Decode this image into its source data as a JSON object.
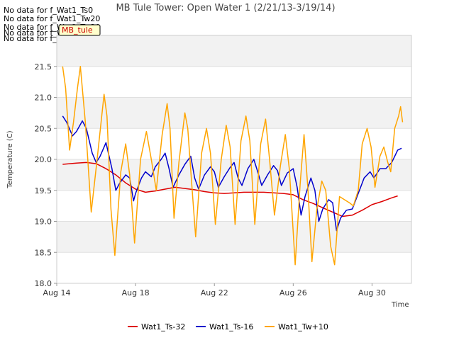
{
  "no_data_messages": [
    "No data for f_Wat1_Ts0",
    "No data for f_Wat1_Tw20",
    "No data for f_Wat1_Tw30",
    "No data for f_Wat1_Tw40",
    "No data for f_Wat1_Tw50"
  ],
  "badge_label": "MB_tule",
  "chart_data": {
    "type": "line",
    "title": "MB Tule Tower: Open Water 1 (2/21/13-3/19/14)",
    "xlabel": "Time",
    "ylabel": "Temperature (C)",
    "ylim": [
      18.0,
      22.0
    ],
    "xlim": [
      14,
      32
    ],
    "yticks": [
      18.0,
      18.5,
      19.0,
      19.5,
      20.0,
      20.5,
      21.0,
      21.5
    ],
    "ytick_labels": [
      "18.0",
      "18.5",
      "19.0",
      "19.5",
      "20.0",
      "20.5",
      "21.0",
      "21.5"
    ],
    "xticks": [
      14,
      18,
      22,
      26,
      30
    ],
    "xtick_labels": [
      "Aug 14",
      "Aug 18",
      "Aug 22",
      "Aug 26",
      "Aug 30"
    ],
    "grid": true,
    "legend_position": "bottom",
    "series": [
      {
        "name": "Wat1_Ts-32",
        "color": "#dd0000",
        "points": [
          [
            14.3,
            19.92
          ],
          [
            15.0,
            19.94
          ],
          [
            15.5,
            19.95
          ],
          [
            16.0,
            19.93
          ],
          [
            16.5,
            19.85
          ],
          [
            17.0,
            19.75
          ],
          [
            17.5,
            19.62
          ],
          [
            18.0,
            19.52
          ],
          [
            18.5,
            19.47
          ],
          [
            19.0,
            19.49
          ],
          [
            19.5,
            19.52
          ],
          [
            20.0,
            19.55
          ],
          [
            20.5,
            19.53
          ],
          [
            21.0,
            19.51
          ],
          [
            21.5,
            19.48
          ],
          [
            22.0,
            19.46
          ],
          [
            22.5,
            19.45
          ],
          [
            23.0,
            19.46
          ],
          [
            23.5,
            19.47
          ],
          [
            24.0,
            19.47
          ],
          [
            24.5,
            19.47
          ],
          [
            25.0,
            19.46
          ],
          [
            25.5,
            19.45
          ],
          [
            26.0,
            19.43
          ],
          [
            26.5,
            19.35
          ],
          [
            27.0,
            19.29
          ],
          [
            27.5,
            19.22
          ],
          [
            28.0,
            19.15
          ],
          [
            28.5,
            19.08
          ],
          [
            29.0,
            19.1
          ],
          [
            29.5,
            19.18
          ],
          [
            30.0,
            19.27
          ],
          [
            30.5,
            19.32
          ],
          [
            31.0,
            19.38
          ],
          [
            31.3,
            19.41
          ]
        ]
      },
      {
        "name": "Wat1_Ts-16",
        "color": "#0000cc",
        "points": [
          [
            14.3,
            20.7
          ],
          [
            14.5,
            20.6
          ],
          [
            14.8,
            20.38
          ],
          [
            15.0,
            20.45
          ],
          [
            15.3,
            20.62
          ],
          [
            15.5,
            20.5
          ],
          [
            15.8,
            20.1
          ],
          [
            16.0,
            19.95
          ],
          [
            16.2,
            20.05
          ],
          [
            16.5,
            20.27
          ],
          [
            16.8,
            19.85
          ],
          [
            17.0,
            19.5
          ],
          [
            17.2,
            19.62
          ],
          [
            17.5,
            19.75
          ],
          [
            17.7,
            19.7
          ],
          [
            17.9,
            19.33
          ],
          [
            18.0,
            19.45
          ],
          [
            18.3,
            19.7
          ],
          [
            18.5,
            19.8
          ],
          [
            18.8,
            19.72
          ],
          [
            19.0,
            19.88
          ],
          [
            19.3,
            20.0
          ],
          [
            19.5,
            20.1
          ],
          [
            19.7,
            19.85
          ],
          [
            19.9,
            19.55
          ],
          [
            20.2,
            19.75
          ],
          [
            20.5,
            19.92
          ],
          [
            20.8,
            20.05
          ],
          [
            21.0,
            19.7
          ],
          [
            21.2,
            19.52
          ],
          [
            21.5,
            19.75
          ],
          [
            21.8,
            19.88
          ],
          [
            22.0,
            19.8
          ],
          [
            22.2,
            19.55
          ],
          [
            22.5,
            19.72
          ],
          [
            22.8,
            19.87
          ],
          [
            23.0,
            19.95
          ],
          [
            23.2,
            19.7
          ],
          [
            23.4,
            19.58
          ],
          [
            23.7,
            19.85
          ],
          [
            24.0,
            20.0
          ],
          [
            24.2,
            19.8
          ],
          [
            24.4,
            19.58
          ],
          [
            24.7,
            19.75
          ],
          [
            25.0,
            19.9
          ],
          [
            25.2,
            19.82
          ],
          [
            25.4,
            19.58
          ],
          [
            25.7,
            19.78
          ],
          [
            26.0,
            19.85
          ],
          [
            26.2,
            19.55
          ],
          [
            26.4,
            19.1
          ],
          [
            26.6,
            19.4
          ],
          [
            26.9,
            19.7
          ],
          [
            27.1,
            19.5
          ],
          [
            27.3,
            19.0
          ],
          [
            27.5,
            19.2
          ],
          [
            27.8,
            19.35
          ],
          [
            28.0,
            19.3
          ],
          [
            28.2,
            18.85
          ],
          [
            28.4,
            19.05
          ],
          [
            28.7,
            19.18
          ],
          [
            29.0,
            19.2
          ],
          [
            29.3,
            19.45
          ],
          [
            29.6,
            19.7
          ],
          [
            29.9,
            19.8
          ],
          [
            30.1,
            19.7
          ],
          [
            30.4,
            19.85
          ],
          [
            30.7,
            19.85
          ],
          [
            31.0,
            19.95
          ],
          [
            31.3,
            20.15
          ],
          [
            31.5,
            20.18
          ]
        ]
      },
      {
        "name": "Wat1_Tw+10",
        "color": "#ffa500",
        "points": [
          [
            14.3,
            21.5
          ],
          [
            14.45,
            21.15
          ],
          [
            14.65,
            20.15
          ],
          [
            14.85,
            20.6
          ],
          [
            15.05,
            21.15
          ],
          [
            15.2,
            21.5
          ],
          [
            15.45,
            20.6
          ],
          [
            15.75,
            19.15
          ],
          [
            16.05,
            20.0
          ],
          [
            16.4,
            21.05
          ],
          [
            16.55,
            20.7
          ],
          [
            16.75,
            19.2
          ],
          [
            16.95,
            18.45
          ],
          [
            17.25,
            19.8
          ],
          [
            17.5,
            20.25
          ],
          [
            17.7,
            19.75
          ],
          [
            17.95,
            18.65
          ],
          [
            18.25,
            20.0
          ],
          [
            18.55,
            20.45
          ],
          [
            18.8,
            20.0
          ],
          [
            19.05,
            19.5
          ],
          [
            19.35,
            20.4
          ],
          [
            19.6,
            20.9
          ],
          [
            19.75,
            20.5
          ],
          [
            19.95,
            19.05
          ],
          [
            20.2,
            19.95
          ],
          [
            20.5,
            20.75
          ],
          [
            20.65,
            20.5
          ],
          [
            20.85,
            19.6
          ],
          [
            21.05,
            18.75
          ],
          [
            21.35,
            20.1
          ],
          [
            21.6,
            20.5
          ],
          [
            21.8,
            20.1
          ],
          [
            22.05,
            18.95
          ],
          [
            22.35,
            20.0
          ],
          [
            22.6,
            20.55
          ],
          [
            22.8,
            20.2
          ],
          [
            23.05,
            18.95
          ],
          [
            23.35,
            20.3
          ],
          [
            23.6,
            20.7
          ],
          [
            23.8,
            20.3
          ],
          [
            24.05,
            18.95
          ],
          [
            24.35,
            20.25
          ],
          [
            24.6,
            20.65
          ],
          [
            24.8,
            20.0
          ],
          [
            25.05,
            19.1
          ],
          [
            25.35,
            19.9
          ],
          [
            25.6,
            20.4
          ],
          [
            25.8,
            19.85
          ],
          [
            25.95,
            19.1
          ],
          [
            26.1,
            18.3
          ],
          [
            26.35,
            19.6
          ],
          [
            26.55,
            20.4
          ],
          [
            26.75,
            19.5
          ],
          [
            26.95,
            18.35
          ],
          [
            27.2,
            19.2
          ],
          [
            27.45,
            19.65
          ],
          [
            27.65,
            19.5
          ],
          [
            27.9,
            18.6
          ],
          [
            28.1,
            18.3
          ],
          [
            28.35,
            19.4
          ],
          [
            28.6,
            19.35
          ],
          [
            28.85,
            19.3
          ],
          [
            29.05,
            19.25
          ],
          [
            29.3,
            19.5
          ],
          [
            29.5,
            20.25
          ],
          [
            29.75,
            20.5
          ],
          [
            29.95,
            20.2
          ],
          [
            30.15,
            19.55
          ],
          [
            30.4,
            20.05
          ],
          [
            30.6,
            20.2
          ],
          [
            30.8,
            19.95
          ],
          [
            30.95,
            19.8
          ],
          [
            31.15,
            20.5
          ],
          [
            31.35,
            20.7
          ],
          [
            31.45,
            20.85
          ],
          [
            31.55,
            20.6
          ]
        ]
      }
    ]
  }
}
